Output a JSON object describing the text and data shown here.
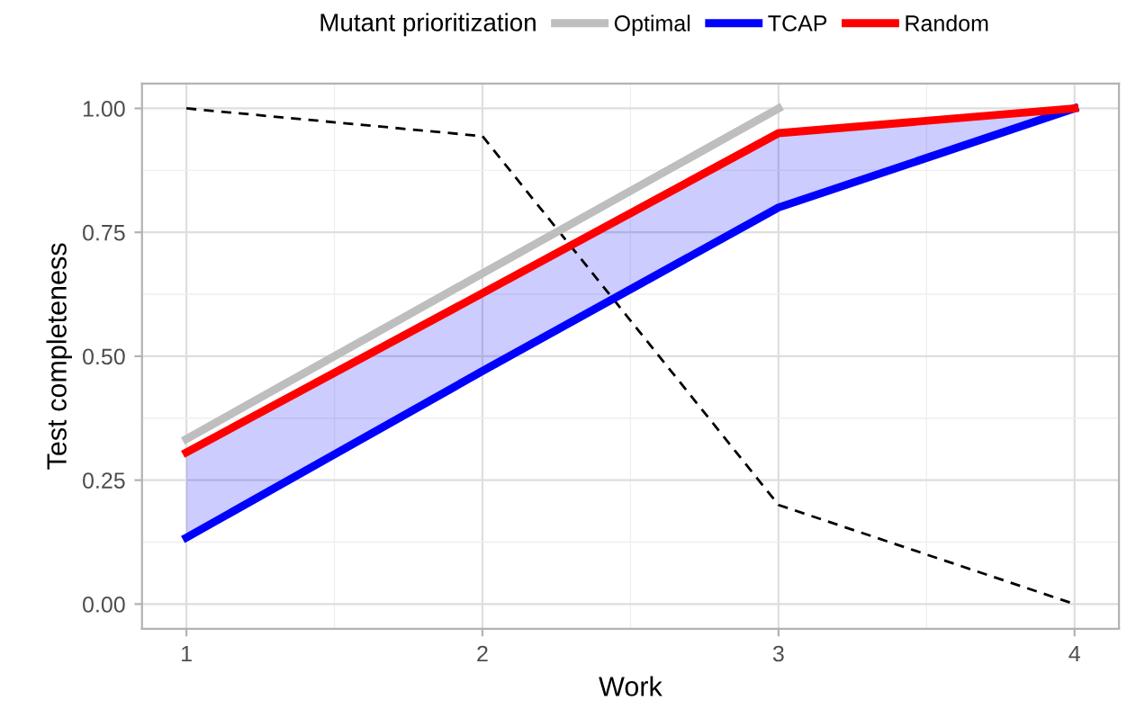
{
  "chart_data": {
    "type": "line",
    "xlabel": "Work",
    "ylabel": "Test completeness",
    "legend_title": "Mutant prioritization",
    "x": [
      1,
      2,
      3,
      4
    ],
    "series": [
      {
        "name": "Optimal",
        "color": "#bebebe",
        "values": [
          0.333,
          0.667,
          1.0,
          null
        ]
      },
      {
        "name": "TCAP",
        "color": "#0000ff",
        "values": [
          0.134,
          0.47,
          0.8,
          1.0
        ],
        "lower": [
          0.134,
          0.47,
          0.8,
          1.0
        ],
        "upper": [
          0.306,
          0.627,
          0.95,
          1.0
        ]
      },
      {
        "name": "Random",
        "color": "#ff0000",
        "values": [
          0.306,
          0.627,
          0.95,
          1.0
        ]
      },
      {
        "color": "#000000",
        "values": [
          1.0,
          0.944,
          0.2,
          0.0
        ],
        "line_style": "dashed"
      }
    ],
    "xlim": [
      0.85,
      4.15
    ],
    "ylim": [
      -0.05,
      1.05
    ],
    "xticks": [
      1,
      2,
      3,
      4
    ],
    "yticks": [
      {
        "value": 0,
        "label": "0.00"
      },
      {
        "value": 0.25,
        "label": "0.25"
      },
      {
        "value": 0.5,
        "label": "0.50"
      },
      {
        "value": 0.75,
        "label": "0.75"
      },
      {
        "value": 1.0,
        "label": "1.00"
      }
    ],
    "grid": true,
    "legend": "top"
  }
}
